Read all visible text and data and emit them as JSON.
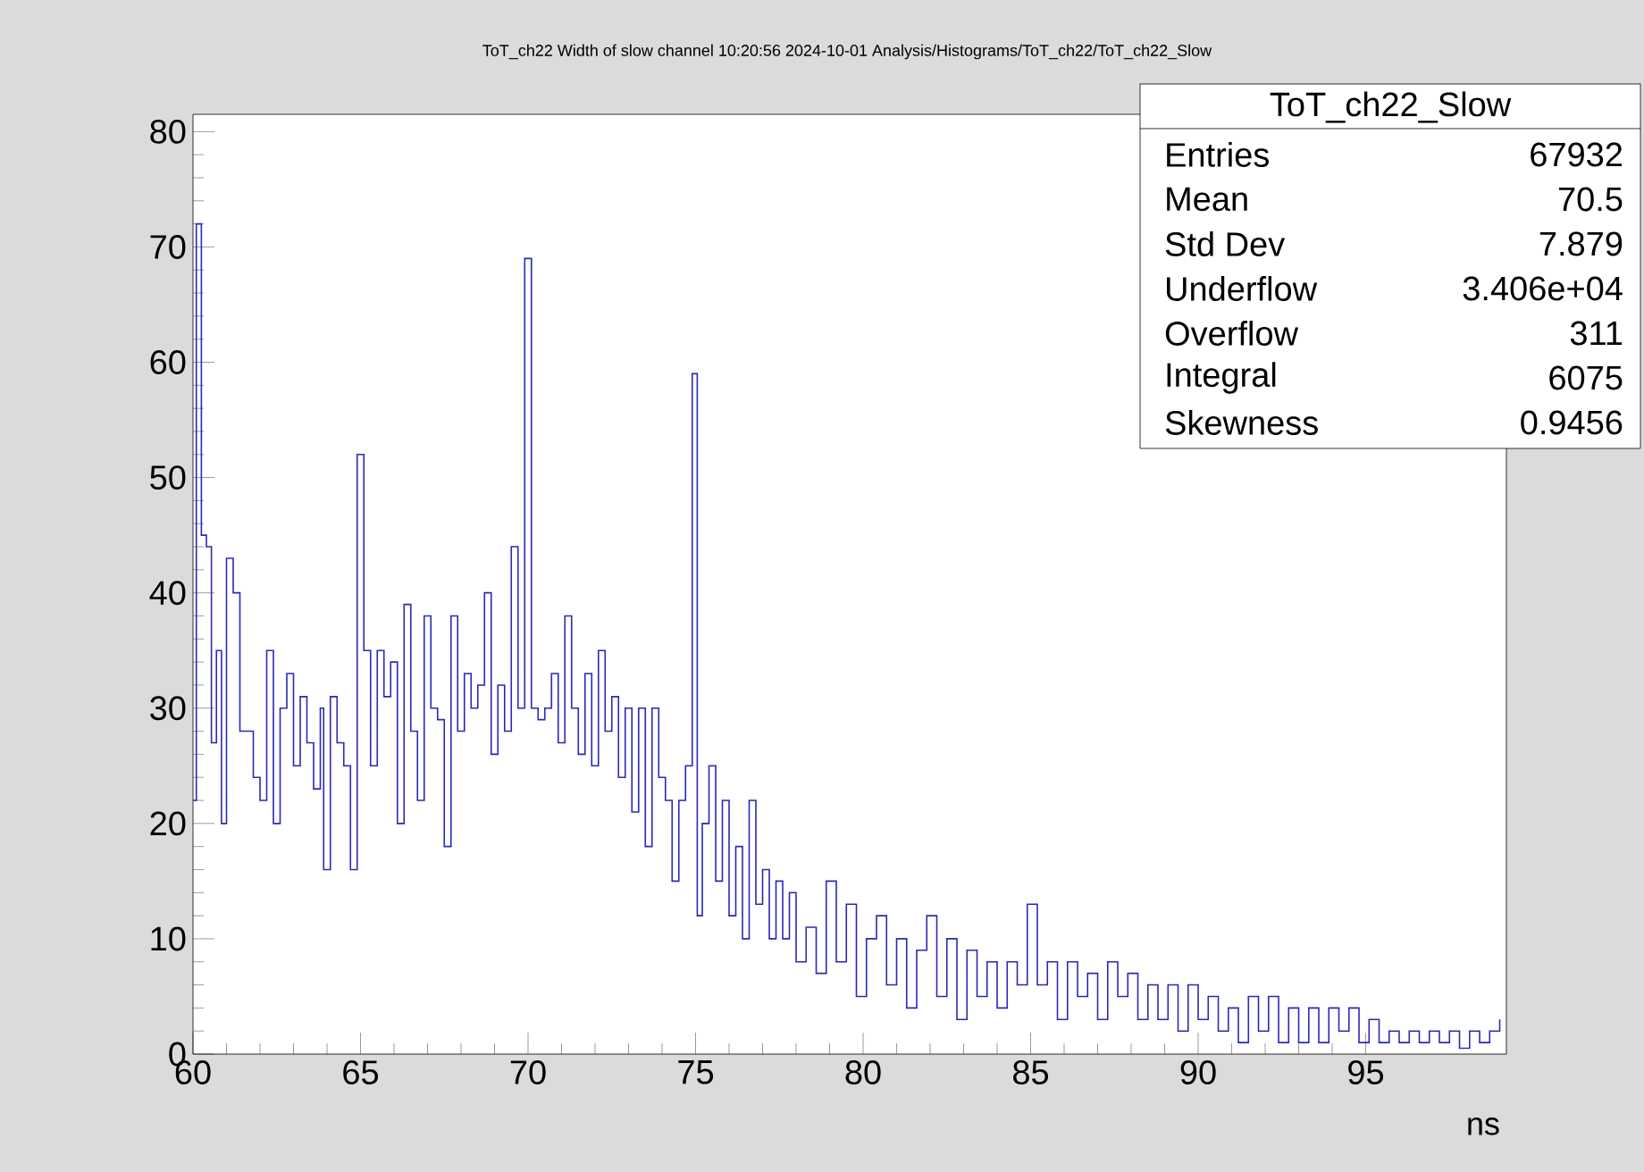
{
  "chart_data": {
    "type": "step",
    "title": "ToT_ch22 Width of slow channel  10:20:56  2024-10-01  Analysis/Histograms/ToT_ch22/ToT_ch22_Slow",
    "xlabel": "ns",
    "color": "#2a2ab4",
    "x": [
      60.0,
      60.1,
      60.25,
      60.4,
      60.55,
      60.7,
      60.85,
      61.0,
      61.2,
      61.4,
      61.6,
      61.8,
      62.0,
      62.2,
      62.4,
      62.6,
      62.8,
      63.0,
      63.2,
      63.4,
      63.6,
      63.8,
      63.9,
      64.1,
      64.3,
      64.5,
      64.7,
      64.9,
      65.1,
      65.3,
      65.5,
      65.7,
      65.9,
      66.1,
      66.3,
      66.5,
      66.7,
      66.9,
      67.1,
      67.3,
      67.5,
      67.7,
      67.9,
      68.1,
      68.3,
      68.5,
      68.7,
      68.9,
      69.1,
      69.3,
      69.5,
      69.7,
      69.9,
      70.1,
      70.3,
      70.5,
      70.7,
      70.9,
      71.1,
      71.3,
      71.5,
      71.7,
      71.9,
      72.1,
      72.3,
      72.5,
      72.7,
      72.9,
      73.1,
      73.3,
      73.5,
      73.7,
      73.9,
      74.1,
      74.3,
      74.5,
      74.7,
      74.9,
      75.05,
      75.2,
      75.4,
      75.6,
      75.8,
      76.0,
      76.2,
      76.4,
      76.6,
      76.8,
      77.0,
      77.2,
      77.4,
      77.6,
      77.8,
      78.0,
      78.3,
      78.6,
      78.9,
      79.2,
      79.5,
      79.8,
      80.1,
      80.4,
      80.7,
      81.0,
      81.3,
      81.6,
      81.9,
      82.2,
      82.5,
      82.8,
      83.1,
      83.4,
      83.7,
      84.0,
      84.3,
      84.6,
      84.9,
      85.2,
      85.5,
      85.8,
      86.1,
      86.4,
      86.7,
      87.0,
      87.3,
      87.6,
      87.9,
      88.2,
      88.5,
      88.8,
      89.1,
      89.4,
      89.7,
      90.0,
      90.3,
      90.6,
      90.9,
      91.2,
      91.5,
      91.8,
      92.1,
      92.4,
      92.7,
      93.0,
      93.3,
      93.6,
      93.9,
      94.2,
      94.5,
      94.8,
      95.1,
      95.4,
      95.7,
      96.0,
      96.3,
      96.6,
      96.9,
      97.2,
      97.5,
      97.8,
      98.1,
      98.4,
      98.7,
      99.0
    ],
    "values": [
      22,
      72,
      45,
      44,
      27,
      35,
      20,
      43,
      40,
      28,
      28,
      24,
      22,
      35,
      20,
      30,
      33,
      25,
      31,
      27,
      23,
      30,
      16,
      31,
      27,
      25,
      16,
      52,
      35,
      25,
      35,
      31,
      34,
      20,
      39,
      28,
      22,
      38,
      30,
      29,
      18,
      38,
      28,
      33,
      30,
      32,
      40,
      26,
      32,
      28,
      44,
      30,
      69,
      30,
      29,
      30,
      33,
      27,
      38,
      30,
      26,
      33,
      25,
      35,
      28,
      31,
      24,
      30,
      21,
      30,
      18,
      30,
      24,
      22,
      15,
      22,
      25,
      59,
      12,
      20,
      25,
      15,
      22,
      12,
      18,
      10,
      22,
      13,
      16,
      10,
      15,
      10,
      14,
      8,
      11,
      7,
      15,
      8,
      13,
      5,
      10,
      12,
      6,
      10,
      4,
      9,
      12,
      5,
      10,
      3,
      9,
      5,
      8,
      4,
      8,
      6,
      13,
      6,
      8,
      3,
      8,
      5,
      7,
      3,
      8,
      5,
      7,
      3,
      6,
      3,
      6,
      2,
      6,
      3,
      5,
      2,
      4,
      1,
      5,
      2,
      5,
      1,
      4,
      1,
      4,
      1,
      4,
      2,
      4,
      1,
      3,
      1,
      2,
      1,
      2,
      1,
      2,
      1,
      2,
      0.5,
      2,
      1,
      2,
      3
    ],
    "xlim": [
      60,
      99.2
    ],
    "ylim": [
      0,
      81.5
    ],
    "xticks": [
      60,
      65,
      70,
      75,
      80,
      85,
      90,
      95
    ],
    "yticks": [
      0,
      10,
      20,
      30,
      40,
      50,
      60,
      70,
      80
    ],
    "annotations": [
      "ToT_ch22_Slow",
      "Entries",
      "67932",
      "Mean",
      "70.5",
      "Std Dev",
      "7.879",
      "Underflow",
      "3.406e+04",
      "Overflow",
      "311",
      "Integral",
      "6075",
      "Skewness",
      "0.9456"
    ]
  }
}
